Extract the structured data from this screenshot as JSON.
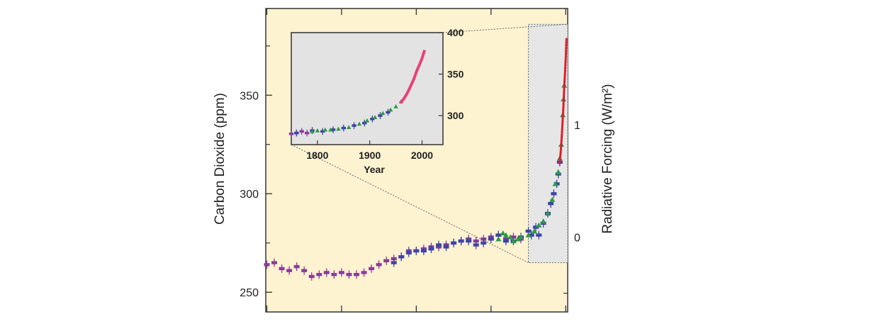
{
  "chart_data": [
    {
      "type": "scatter",
      "title": "",
      "ylabel": "Carbon Dioxide (ppm)",
      "ylabel_right": "Radiative Forcing (W/m²)",
      "xlabel": "",
      "xlim": [
        -7,
        2013
      ],
      "ylim": [
        240,
        394
      ],
      "yticks": [
        250,
        300,
        350
      ],
      "xticks": [
        0,
        500,
        1000,
        1500,
        2000
      ],
      "yticks_right": [
        {
          "value": 0,
          "label": "0"
        },
        {
          "value": 1,
          "label": "1"
        }
      ],
      "right_axis_ppm": {
        "0": 278,
        "1": 335
      },
      "zoom_region": {
        "x": [
          1750,
          2013
        ],
        "y": [
          265,
          386
        ]
      },
      "colors": {
        "background": "#fdf3d1",
        "zoom_box": "#e6e6e6"
      },
      "series": [
        {
          "color": "#8a3c9a",
          "marker": "dash",
          "points": [
            [
              0,
              264
            ],
            [
              50,
              265
            ],
            [
              100,
              262
            ],
            [
              150,
              261
            ],
            [
              200,
              263
            ],
            [
              250,
              261
            ],
            [
              300,
              258
            ],
            [
              350,
              259
            ],
            [
              400,
              260
            ],
            [
              450,
              259
            ],
            [
              500,
              260
            ],
            [
              550,
              259
            ],
            [
              600,
              259
            ],
            [
              650,
              260
            ],
            [
              700,
              262
            ],
            [
              750,
              264
            ],
            [
              800,
              266
            ],
            [
              850,
              267
            ],
            [
              900,
              268
            ],
            [
              950,
              271
            ],
            [
              1000,
              271
            ],
            [
              1050,
              272
            ],
            [
              1100,
              273
            ],
            [
              1150,
              273
            ],
            [
              1200,
              274
            ],
            [
              1250,
              275
            ],
            [
              1300,
              276
            ],
            [
              1350,
              277
            ],
            [
              1400,
              276
            ],
            [
              1450,
              277
            ],
            [
              1500,
              278
            ],
            [
              1550,
              279
            ],
            [
              1600,
              277
            ],
            [
              1650,
              278
            ],
            [
              1700,
              277
            ]
          ]
        },
        {
          "color": "#3d45a6",
          "marker": "dash",
          "points": [
            [
              850,
              265
            ],
            [
              900,
              268
            ],
            [
              950,
              270
            ],
            [
              1000,
              271
            ],
            [
              1050,
              271
            ],
            [
              1100,
              272
            ],
            [
              1150,
              274
            ],
            [
              1200,
              273
            ],
            [
              1250,
              275
            ],
            [
              1300,
              276
            ],
            [
              1350,
              276
            ],
            [
              1400,
              274
            ],
            [
              1450,
              275
            ],
            [
              1500,
              277
            ],
            [
              1550,
              279
            ],
            [
              1600,
              276
            ],
            [
              1650,
              276
            ],
            [
              1700,
              278
            ],
            [
              1750,
              281
            ],
            [
              1770,
              279
            ],
            [
              1800,
              283
            ],
            [
              1820,
              279
            ],
            [
              1850,
              285
            ],
            [
              1880,
              290
            ],
            [
              1900,
              295
            ],
            [
              1920,
              300
            ],
            [
              1940,
              305
            ],
            [
              1950,
              310
            ],
            [
              1960,
              316
            ]
          ]
        },
        {
          "color": "#2e9a47",
          "marker": "triangle",
          "points": [
            [
              1550,
              277
            ],
            [
              1580,
              280
            ],
            [
              1600,
              279
            ],
            [
              1630,
              278
            ],
            [
              1650,
              276
            ],
            [
              1680,
              277
            ],
            [
              1700,
              278
            ],
            [
              1750,
              279
            ],
            [
              1790,
              281
            ],
            [
              1820,
              284
            ],
            [
              1850,
              286
            ],
            [
              1880,
              290
            ],
            [
              1910,
              297
            ],
            [
              1930,
              305
            ],
            [
              1950,
              311
            ],
            [
              1960,
              318
            ],
            [
              1970,
              325
            ],
            [
              1980,
              340
            ],
            [
              1985,
              348
            ],
            [
              1990,
              355
            ]
          ]
        },
        {
          "color": "#e11c2a",
          "marker": "line",
          "points": [
            [
              1958,
              315
            ],
            [
              1965,
              320
            ],
            [
              1970,
              325
            ],
            [
              1975,
              331
            ],
            [
              1980,
              338
            ],
            [
              1985,
              345
            ],
            [
              1990,
              354
            ],
            [
              1995,
              361
            ],
            [
              2000,
              369
            ],
            [
              2005,
              379
            ]
          ]
        }
      ]
    },
    {
      "type": "scatter",
      "title": "",
      "xlabel": "Year",
      "ylabel": "",
      "xlim": [
        1750,
        2040
      ],
      "ylim": [
        265,
        400
      ],
      "xticks": [
        1800,
        1900,
        2000
      ],
      "yticks": [
        300,
        350,
        400
      ],
      "series": [
        {
          "color": "#8a3c9a",
          "marker": "dash",
          "points": [
            [
              1750,
              278
            ],
            [
              1760,
              279
            ],
            [
              1770,
              281
            ],
            [
              1780,
              279
            ]
          ]
        },
        {
          "color": "#3d45a6",
          "marker": "dash",
          "points": [
            [
              1760,
              279
            ],
            [
              1790,
              282
            ],
            [
              1810,
              281
            ],
            [
              1830,
              283
            ],
            [
              1850,
              285
            ],
            [
              1870,
              288
            ],
            [
              1890,
              291
            ],
            [
              1905,
              296
            ],
            [
              1920,
              300
            ],
            [
              1935,
              304
            ]
          ]
        },
        {
          "color": "#2e9a47",
          "marker": "triangle",
          "points": [
            [
              1790,
              281
            ],
            [
              1800,
              282
            ],
            [
              1815,
              283
            ],
            [
              1825,
              283
            ],
            [
              1840,
              284
            ],
            [
              1860,
              286
            ],
            [
              1880,
              290
            ],
            [
              1895,
              294
            ],
            [
              1910,
              298
            ],
            [
              1925,
              303
            ],
            [
              1940,
              307
            ],
            [
              1950,
              311
            ],
            [
              1960,
              317
            ]
          ]
        },
        {
          "color": "#e6427b",
          "marker": "line",
          "points": [
            [
              1958,
              315
            ],
            [
              1965,
              320
            ],
            [
              1970,
              325
            ],
            [
              1975,
              331
            ],
            [
              1980,
              338
            ],
            [
              1985,
              345
            ],
            [
              1990,
              354
            ],
            [
              1995,
              361
            ],
            [
              2000,
              369
            ],
            [
              2005,
              379
            ]
          ]
        }
      ]
    }
  ]
}
